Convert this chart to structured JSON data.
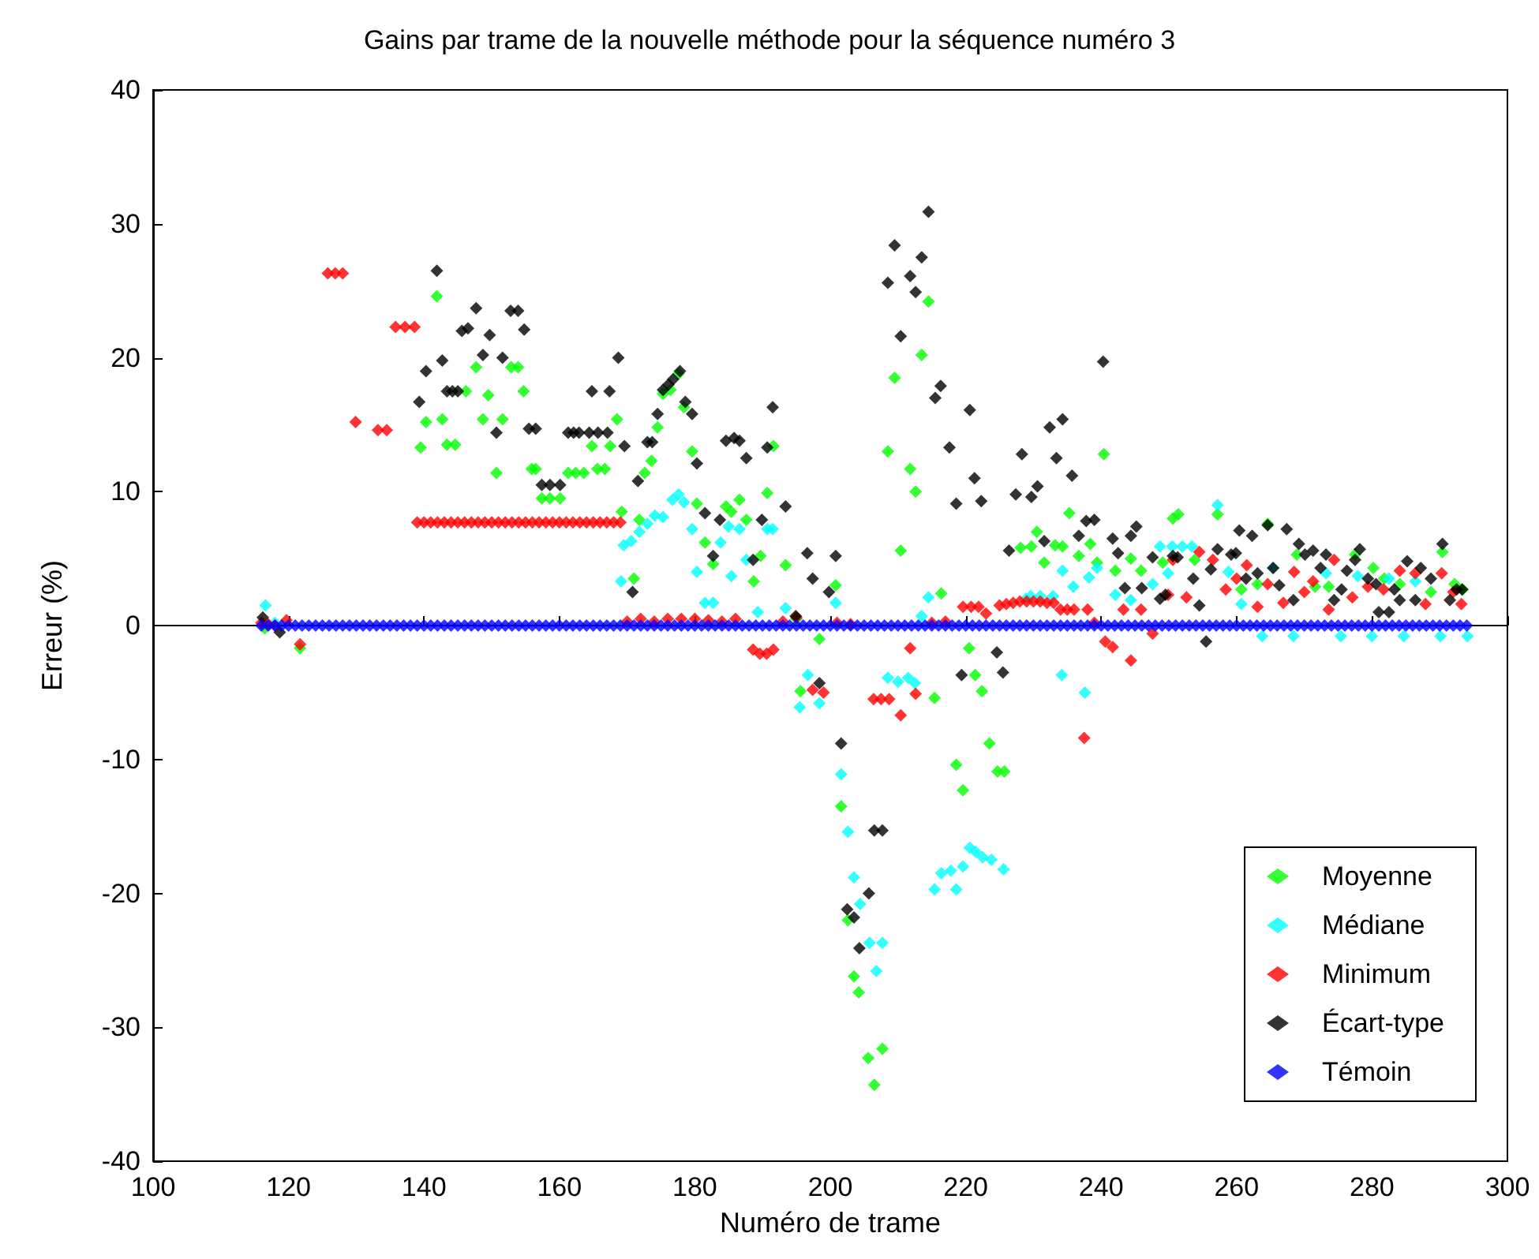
{
  "chart_data": {
    "type": "scatter",
    "title": "Gains par trame de la nouvelle méthode pour la séquence numéro 3",
    "xlabel": "Numéro de trame",
    "ylabel": "Erreur (%)",
    "xlim": [
      100,
      300
    ],
    "xticks": [
      100,
      120,
      140,
      160,
      180,
      200,
      220,
      240,
      260,
      280,
      300
    ],
    "ylim": [
      -40,
      40
    ],
    "yticks": [
      -40,
      -30,
      -20,
      -10,
      0,
      10,
      20,
      30,
      40
    ],
    "legend": "bottom right",
    "marker": "diamond",
    "series": [
      {
        "name": "Moyenne",
        "color": "#00ff00",
        "x": [
          116.5,
          121.7,
          139.5,
          140.3,
          141.9,
          142.7,
          143.4,
          144.6,
          146.2,
          147.7,
          148.7,
          149.5,
          150.7,
          151.6,
          152.9,
          153.9,
          154.7,
          155.9,
          156.5,
          157.4,
          158.6,
          160.1,
          161.3,
          162.4,
          163.6,
          164.8,
          165.6,
          166.7,
          167.5,
          168.5,
          169.2,
          171,
          171.8,
          172.6,
          173.6,
          174.5,
          175.3,
          176.4,
          177.6,
          178.4,
          179.6,
          180.3,
          181.5,
          182.7,
          184.6,
          185.4,
          186.6,
          187.6,
          188.7,
          189.7,
          190.7,
          191.6,
          193.4,
          195,
          195.6,
          198.4,
          200.8,
          201.6,
          202.6,
          203.5,
          204.2,
          205.6,
          206.5,
          207.7,
          208.5,
          209.5,
          210.4,
          211.8,
          212.6,
          213.5,
          214.5,
          215.4,
          216.4,
          218.6,
          219.6,
          220.5,
          221.4,
          222.4,
          223.5,
          224.7,
          225.7,
          228.1,
          229.7,
          230.5,
          231.6,
          233.2,
          234.3,
          235.3,
          236.7,
          238.4,
          239.4,
          240.4,
          242.1,
          244.4,
          245.9,
          249.1,
          250.6,
          251.4,
          253.8,
          257.2,
          260.7,
          263.1,
          264.6,
          268.9,
          271.6,
          273.6,
          277.5,
          280.2,
          281.8,
          284.1,
          288.7,
          290.4,
          292.2,
          293.4
        ],
        "values": [
          -0.2,
          -1.7,
          13.3,
          15.2,
          24.6,
          15.4,
          13.5,
          13.5,
          17.5,
          19.3,
          15.4,
          17.2,
          11.4,
          15.4,
          19.3,
          19.3,
          17.5,
          11.7,
          11.7,
          9.5,
          9.5,
          9.5,
          11.4,
          11.4,
          11.4,
          13.4,
          11.7,
          11.7,
          13.4,
          15.4,
          8.5,
          3.5,
          7.9,
          11.4,
          12.3,
          14.8,
          17.3,
          17.6,
          18.8,
          16.3,
          13,
          9.1,
          6.2,
          4.6,
          8.9,
          8.5,
          9.4,
          7.9,
          3.3,
          5.2,
          9.9,
          13.4,
          4.5,
          0.5,
          -4.9,
          -1,
          3,
          -13.5,
          -22,
          -26.2,
          -27.4,
          -32.3,
          -34.3,
          -31.6,
          13,
          18.5,
          5.6,
          11.7,
          10,
          20.2,
          24.2,
          -5.4,
          2.4,
          -10.4,
          -12.3,
          -1.7,
          -3.7,
          -4.9,
          -8.8,
          -10.9,
          -10.9,
          5.8,
          5.9,
          7,
          4.7,
          6,
          5.9,
          8.4,
          5.2,
          6.1,
          4.7,
          12.8,
          4.1,
          5,
          4.1,
          4.7,
          8,
          8.3,
          4.9,
          8.3,
          2.7,
          3.1,
          7.6,
          5.3,
          2.9,
          2.9,
          5.3,
          4.3,
          3.5,
          3.1,
          2.5,
          5.5,
          3.1,
          2.7
        ]
      },
      {
        "name": "Médiane",
        "color": "#00ffff",
        "x": [
          116.6,
          118,
          169.1,
          169.5,
          170.6,
          171.8,
          173,
          174.1,
          175.3,
          176.7,
          177.6,
          178.4,
          179.6,
          180.3,
          181.5,
          182.7,
          183.8,
          185,
          185.4,
          186.6,
          187.6,
          189.3,
          190.7,
          191.5,
          193.4,
          195.5,
          196.7,
          198.4,
          200.8,
          201.6,
          202.6,
          203.5,
          204.4,
          205.8,
          206.8,
          207.7,
          208.5,
          210,
          211.5,
          212.5,
          213.5,
          214.5,
          215.4,
          216.4,
          217.8,
          218.6,
          219.6,
          220.6,
          221.5,
          222.5,
          223.8,
          225.6,
          228.9,
          229.6,
          231,
          232.9,
          234.2,
          234.3,
          235.9,
          237.6,
          238.2,
          239.4,
          242.1,
          244.4,
          247.6,
          248.7,
          249.9,
          250.5,
          252,
          253.4,
          257.2,
          258.8,
          260.7,
          263.8,
          265.4,
          268.4,
          273.2,
          275.4,
          277.9,
          280,
          282.5,
          284.7,
          286.4,
          290.1,
          294.1
        ],
        "values": [
          1.5,
          0.2,
          3.3,
          6,
          6.3,
          7,
          7.6,
          8.2,
          8.1,
          9.4,
          9.8,
          9.2,
          7.2,
          4,
          1.7,
          1.7,
          6.2,
          7.4,
          3.7,
          7.2,
          4.9,
          1,
          7.2,
          7.2,
          1.3,
          -6.1,
          -3.7,
          -5.8,
          1.7,
          -11.1,
          -15.4,
          -18.8,
          -20.8,
          -23.7,
          -25.8,
          -23.7,
          -3.9,
          -4.2,
          -3.9,
          -4.3,
          0.7,
          2.1,
          -19.7,
          -18.5,
          -18.3,
          -19.7,
          -18,
          -16.6,
          -16.9,
          -17.3,
          -17.5,
          -18.2,
          2,
          2.2,
          2.2,
          2.2,
          -3.7,
          4.1,
          2.9,
          -5,
          3.6,
          4.3,
          2.3,
          1.9,
          3.1,
          5.9,
          3.9,
          5.9,
          5.9,
          5.9,
          9,
          4,
          1.6,
          -0.8,
          4.3,
          -0.8,
          3.9,
          -0.8,
          3.7,
          -0.8,
          3.5,
          -0.8,
          3.3,
          -0.8,
          -0.8
        ]
      },
      {
        "name": "Minimum",
        "color": "#ff0000",
        "x": [
          116,
          117,
          118,
          119.7,
          121.7,
          125.8,
          126.9,
          128,
          129.9,
          133.2,
          134.5,
          135.8,
          137.2,
          138.6,
          139,
          140,
          141,
          142,
          143,
          144,
          145,
          146,
          147,
          148,
          149,
          150,
          151,
          152,
          153,
          154,
          155,
          156,
          157,
          158,
          159,
          160,
          161,
          162,
          163,
          164,
          165,
          166,
          167,
          168,
          169,
          170,
          172,
          174,
          176,
          178,
          180,
          182,
          184,
          186,
          188.6,
          189.6,
          190.6,
          191.6,
          193,
          195,
          197.4,
          199,
          201,
          203,
          206.4,
          207.5,
          208.7,
          210.4,
          211.8,
          212.6,
          215,
          217,
          219.6,
          220.8,
          221.9,
          223,
          225,
          226,
          227,
          228,
          229,
          230,
          231,
          232,
          233,
          234,
          235,
          236,
          237.5,
          238,
          239,
          240.6,
          241.7,
          243.3,
          244.4,
          245.9,
          247.6,
          249.9,
          250.6,
          252.6,
          254.5,
          256.5,
          258.4,
          260,
          261.5,
          263.1,
          264.6,
          266.9,
          268.5,
          270,
          271.3,
          273.6,
          274.4,
          277.1,
          279.4,
          281.7,
          284.1,
          286.4,
          287.9,
          290.3,
          292,
          293.2
        ],
        "values": [
          0.2,
          0.1,
          0,
          0.4,
          -1.4,
          26.3,
          26.3,
          26.3,
          15.2,
          14.6,
          14.6,
          22.3,
          22.3,
          22.3,
          7.7,
          7.7,
          7.7,
          7.7,
          7.7,
          7.7,
          7.7,
          7.7,
          7.7,
          7.7,
          7.7,
          7.7,
          7.7,
          7.7,
          7.7,
          7.7,
          7.7,
          7.7,
          7.7,
          7.7,
          7.7,
          7.7,
          7.7,
          7.7,
          7.7,
          7.7,
          7.7,
          7.7,
          7.7,
          7.7,
          7.7,
          0.3,
          0.5,
          0.3,
          0.5,
          0.5,
          0.5,
          0.4,
          0.3,
          0.5,
          -1.8,
          -2.1,
          -2.1,
          -1.8,
          0.3,
          0.6,
          -4.8,
          -5,
          0.2,
          0.1,
          -5.5,
          -5.5,
          -5.5,
          -6.7,
          -1.7,
          -5.1,
          0.2,
          0.3,
          1.4,
          1.4,
          1.4,
          0.9,
          1.5,
          1.6,
          1.7,
          1.8,
          1.8,
          1.8,
          1.8,
          1.7,
          1.7,
          1.2,
          1.2,
          1.2,
          -8.4,
          1.2,
          0.2,
          -1.2,
          -1.6,
          1.2,
          -2.6,
          1.2,
          -0.6,
          2.3,
          4.9,
          2.1,
          5.5,
          4.9,
          2.7,
          3.5,
          4.5,
          1.4,
          3.1,
          1.7,
          4,
          2.5,
          3.3,
          1.2,
          4.9,
          2.1,
          2.9,
          2.7,
          4.1,
          3.9,
          1.6,
          3.9,
          2.5,
          1.6
        ]
      },
      {
        "name": "Écart-type",
        "color": "#000000",
        "x": [
          116.2,
          118.7,
          139.3,
          140.3,
          141.9,
          142.7,
          143.4,
          144.2,
          145,
          145.6,
          146.5,
          147.7,
          148.7,
          149.7,
          150.7,
          151.6,
          152.8,
          153.9,
          154.8,
          155.5,
          156.5,
          157.4,
          158.6,
          160.1,
          161.3,
          162.1,
          162.9,
          164.4,
          164.8,
          165.7,
          167.1,
          167.4,
          168.7,
          169.6,
          170.8,
          171.6,
          173,
          173.7,
          174.5,
          175.3,
          176.1,
          176.8,
          177.8,
          178.6,
          179.6,
          180.3,
          181.5,
          182.7,
          183.7,
          184.6,
          185.8,
          186.6,
          187.6,
          188.6,
          189.9,
          190.7,
          191.5,
          193.4,
          194.9,
          196.6,
          197.4,
          198.4,
          199.8,
          200.8,
          201.6,
          202.5,
          203.5,
          204.3,
          205.7,
          206.5,
          207.7,
          208.5,
          209.5,
          210.4,
          211.8,
          212.6,
          213.5,
          214.5,
          215.5,
          216.3,
          217.6,
          218.6,
          219.4,
          220.6,
          221.3,
          222.3,
          224.6,
          225.5,
          226.4,
          227.4,
          228.3,
          229.7,
          230.6,
          231.6,
          232.4,
          233.4,
          234.3,
          235.7,
          236.7,
          237.8,
          239,
          240.3,
          241.7,
          242.5,
          243.5,
          244.4,
          245.2,
          246,
          247.6,
          248.7,
          249.5,
          250.6,
          251.3,
          253.6,
          254.5,
          255.5,
          256.2,
          257.2,
          259.2,
          259.9,
          260.4,
          261.4,
          262.3,
          263.1,
          264.6,
          265.4,
          266.3,
          267.4,
          268.4,
          269.2,
          270.1,
          271.3,
          272.4,
          273.2,
          274.4,
          275.5,
          276.3,
          277.5,
          278.2,
          279.4,
          280.6,
          281,
          282.5,
          283.3,
          284.1,
          285.2,
          286.4,
          287.2,
          288.7,
          290.4,
          291.5,
          292.5,
          293.3
        ],
        "values": [
          0.6,
          -0.5,
          16.7,
          19,
          26.5,
          19.8,
          17.5,
          17.5,
          17.5,
          22,
          22.2,
          23.7,
          20.2,
          21.7,
          14.4,
          20,
          23.5,
          23.5,
          22.1,
          14.7,
          14.7,
          10.5,
          10.5,
          10.5,
          14.4,
          14.4,
          14.4,
          14.4,
          17.5,
          14.4,
          14.4,
          17.5,
          20,
          13.4,
          2.5,
          10.8,
          13.7,
          13.7,
          15.8,
          17.6,
          18,
          18.4,
          19,
          16.7,
          15.8,
          12.1,
          8.4,
          5.2,
          7.9,
          13.8,
          14,
          13.8,
          12.5,
          4.9,
          7.9,
          13.3,
          16.3,
          8.9,
          0.7,
          5.4,
          3.5,
          -4.3,
          2.5,
          5.2,
          -8.8,
          -21.2,
          -21.8,
          -24.1,
          -20,
          -15.3,
          -15.3,
          25.6,
          28.4,
          21.6,
          26.1,
          24.9,
          27.5,
          30.9,
          17,
          17.9,
          13.3,
          9.1,
          -3.7,
          16.1,
          11,
          9.3,
          -2,
          -3.5,
          5.6,
          9.8,
          12.8,
          9.6,
          10.4,
          6.3,
          14.8,
          12.5,
          15.4,
          11.2,
          6.7,
          7.8,
          7.9,
          19.7,
          6.5,
          5.4,
          2.8,
          6.7,
          7.4,
          2.8,
          5.1,
          2,
          2.3,
          5.2,
          5.1,
          3.5,
          1.5,
          -1.2,
          4.2,
          5.7,
          5.3,
          5.4,
          7.1,
          3.5,
          6.7,
          3.9,
          7.5,
          4.3,
          3,
          7.2,
          1.9,
          6.1,
          5.3,
          5.6,
          4.3,
          5.3,
          1.9,
          2.7,
          4.1,
          4.9,
          5.7,
          3.5,
          3.1,
          1,
          1,
          2.7,
          1.9,
          4.8,
          1.9,
          4.3,
          3.5,
          6.1,
          1.9,
          2.7,
          2.7
        ]
      },
      {
        "name": "Témoin",
        "color": "#0000ff",
        "x": [
          116,
          117,
          118,
          119,
          120,
          121,
          122,
          123,
          124,
          125,
          126,
          127,
          128,
          129,
          130,
          131,
          132,
          133,
          134,
          135,
          136,
          137,
          138,
          139,
          140,
          141,
          142,
          143,
          144,
          145,
          146,
          147,
          148,
          149,
          150,
          151,
          152,
          153,
          154,
          155,
          156,
          157,
          158,
          159,
          160,
          161,
          162,
          163,
          164,
          165,
          166,
          167,
          168,
          169,
          170,
          171,
          172,
          173,
          174,
          175,
          176,
          177,
          178,
          179,
          180,
          181,
          182,
          183,
          184,
          185,
          186,
          187,
          188,
          189,
          190,
          191,
          192,
          193,
          194,
          195,
          196,
          197,
          198,
          199,
          200,
          201,
          202,
          203,
          204,
          205,
          206,
          207,
          208,
          209,
          210,
          211,
          212,
          213,
          214,
          215,
          216,
          217,
          218,
          219,
          220,
          221,
          222,
          223,
          224,
          225,
          226,
          227,
          228,
          229,
          230,
          231,
          232,
          233,
          234,
          235,
          236,
          237,
          238,
          239,
          240,
          241,
          242,
          243,
          244,
          245,
          246,
          247,
          248,
          249,
          250,
          251,
          252,
          253,
          254,
          255,
          256,
          257,
          258,
          259,
          260,
          261,
          262,
          263,
          264,
          265,
          266,
          267,
          268,
          269,
          270,
          271,
          272,
          273,
          274,
          275,
          276,
          277,
          278,
          279,
          280,
          281,
          282,
          283,
          284,
          285,
          286,
          287,
          288,
          289,
          290,
          291,
          292,
          293,
          294
        ],
        "values": [
          0,
          0,
          0,
          0,
          0,
          0,
          0,
          0,
          0,
          0,
          0,
          0,
          0,
          0,
          0,
          0,
          0,
          0,
          0,
          0,
          0,
          0,
          0,
          0,
          0,
          0,
          0,
          0,
          0,
          0,
          0,
          0,
          0,
          0,
          0,
          0,
          0,
          0,
          0,
          0,
          0,
          0,
          0,
          0,
          0,
          0,
          0,
          0,
          0,
          0,
          0,
          0,
          0,
          0,
          0,
          0,
          0,
          0,
          0,
          0,
          0,
          0,
          0,
          0,
          0,
          0,
          0,
          0,
          0,
          0,
          0,
          0,
          0,
          0,
          0,
          0,
          0,
          0,
          0,
          0,
          0,
          0,
          0,
          0,
          0,
          0,
          0,
          0,
          0,
          0,
          0,
          0,
          0,
          0,
          0,
          0,
          0,
          0,
          0,
          0,
          0,
          0,
          0,
          0,
          0,
          0,
          0,
          0,
          0,
          0,
          0,
          0,
          0,
          0,
          0,
          0,
          0,
          0,
          0,
          0,
          0,
          0,
          0,
          0,
          0,
          0,
          0,
          0,
          0,
          0,
          0,
          0,
          0,
          0,
          0,
          0,
          0,
          0,
          0,
          0,
          0,
          0,
          0,
          0,
          0,
          0,
          0,
          0,
          0,
          0,
          0,
          0,
          0,
          0,
          0,
          0,
          0,
          0,
          0,
          0,
          0,
          0,
          0,
          0,
          0,
          0,
          0,
          0,
          0,
          0,
          0,
          0,
          0,
          0,
          0,
          0,
          0,
          0,
          0
        ]
      }
    ]
  }
}
